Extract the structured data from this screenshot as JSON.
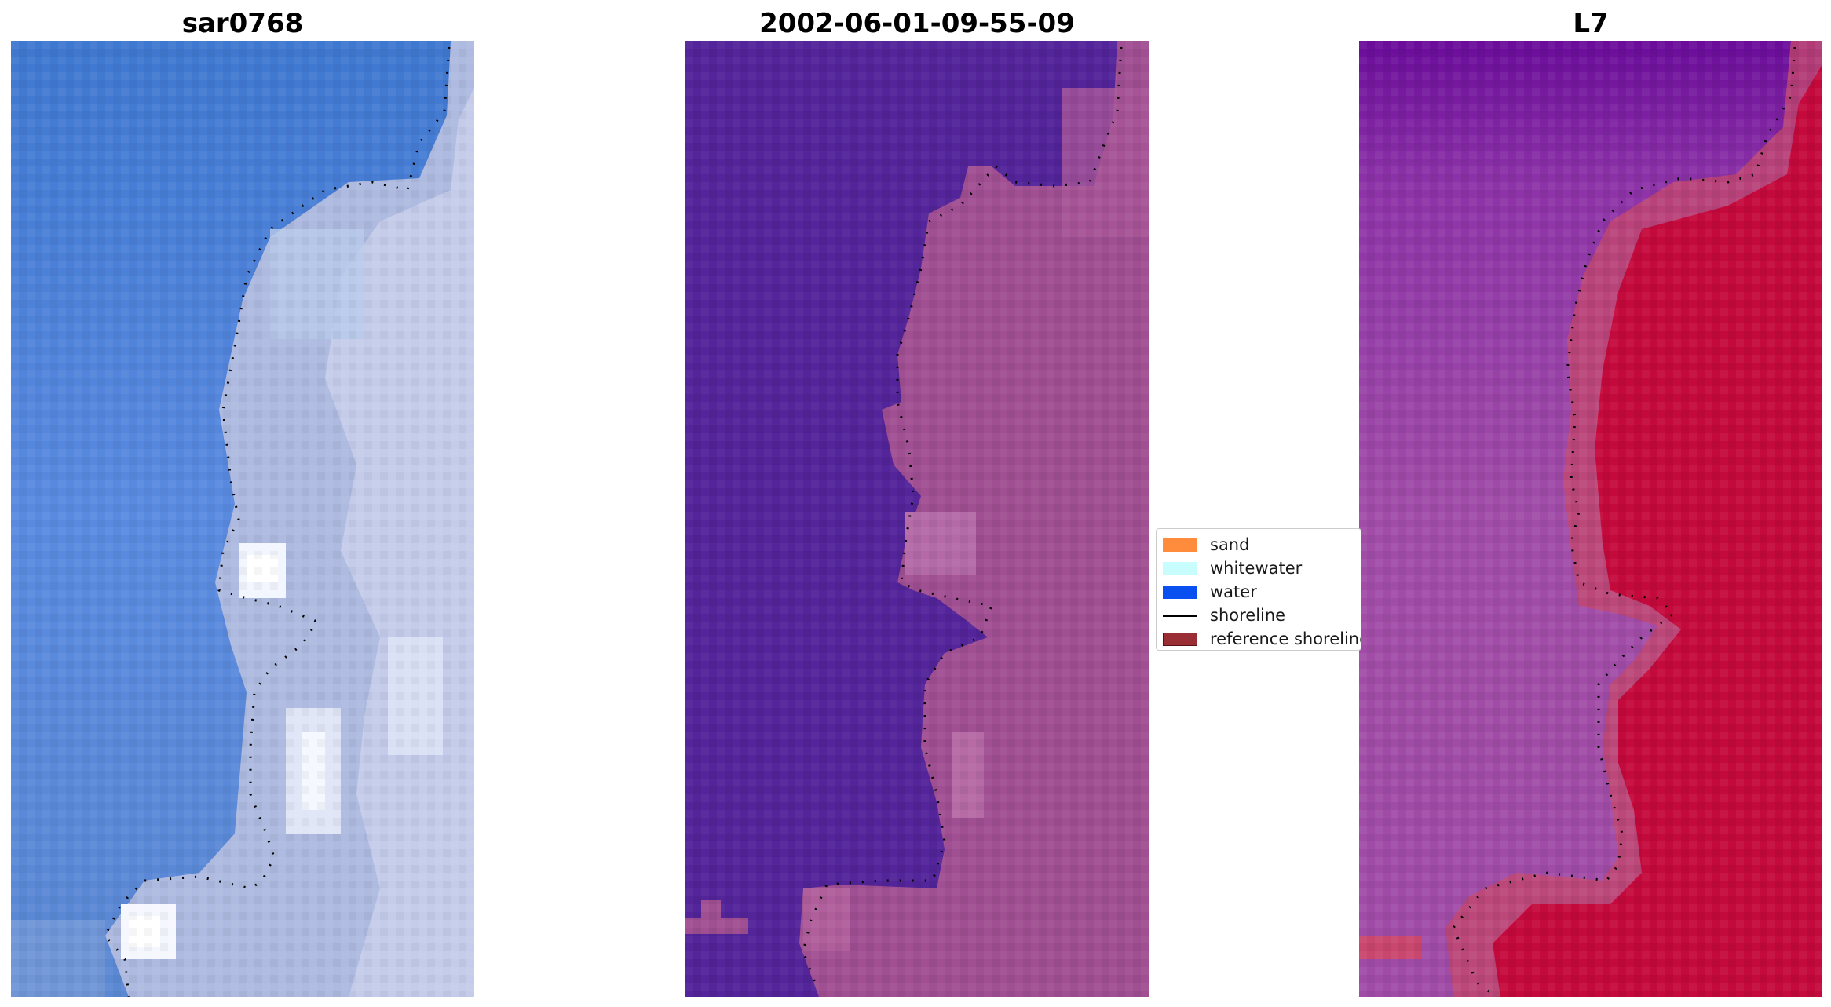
{
  "panels": [
    {
      "title": "sar0768"
    },
    {
      "title": "2002-06-01-09-55-09"
    },
    {
      "title": "L7"
    }
  ],
  "legend": {
    "items": [
      {
        "label": "sand",
        "color": "#ff8c3c",
        "kind": "patch"
      },
      {
        "label": "whitewater",
        "color": "#c8fdfd",
        "kind": "patch"
      },
      {
        "label": "water",
        "color": "#0a50f0",
        "kind": "patch"
      },
      {
        "label": "shoreline",
        "color": "#000000",
        "kind": "line"
      },
      {
        "label": "reference shoreline",
        "color": "#9a2e35",
        "kind": "patch"
      }
    ]
  },
  "colors": {
    "water_rgb": "#4a7fd8",
    "land_rgb": "#c3cbe6",
    "classified_water": "#53249a",
    "classified_land": "#a04f92",
    "index_water": "#9d4aa4",
    "index_land": "#c5063a"
  }
}
